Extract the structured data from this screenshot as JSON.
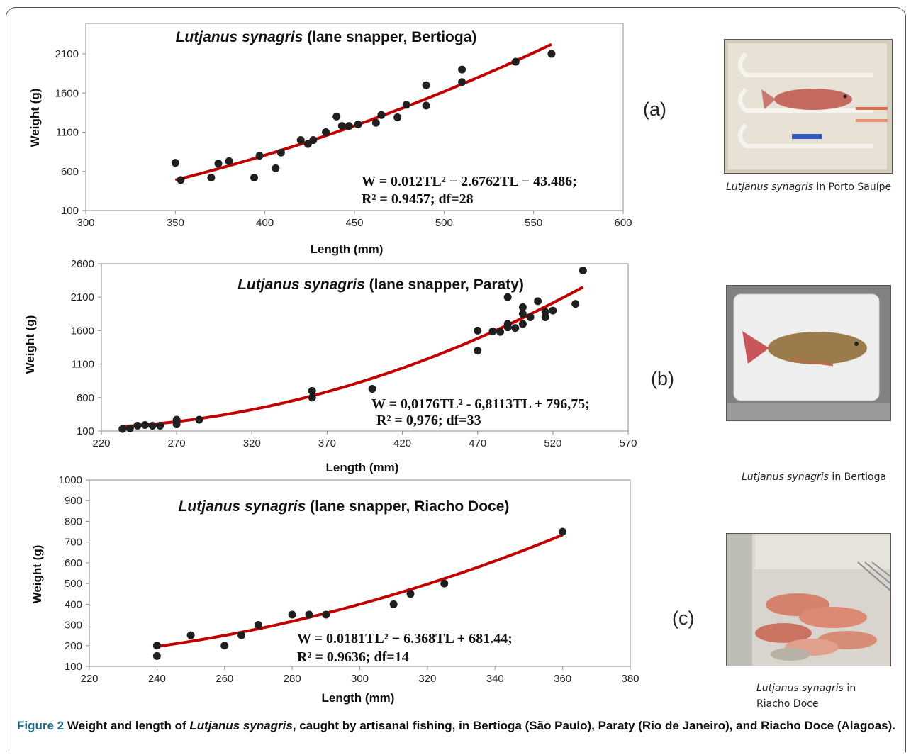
{
  "chart_data": [
    {
      "type": "scatter",
      "panel": "(a)",
      "title_species": "Lutjanus synagris",
      "title_rest": " (lane snapper, Bertioga)",
      "xlabel": "Length (mm)",
      "ylabel": "Weight (g)",
      "xlim": [
        300,
        600
      ],
      "ylim": [
        100,
        2100
      ],
      "xticks": [
        300,
        350,
        400,
        450,
        500,
        550,
        600
      ],
      "yticks": [
        100,
        600,
        1100,
        1600,
        2100
      ],
      "grid": false,
      "trendline": {
        "type": "polynomial",
        "a": 0.012,
        "b": -2.6762,
        "c": -43.486,
        "x_range": [
          350,
          560
        ],
        "color": "#c00000"
      },
      "equation_line1": "W = 0.012TL² − 2.6762TL − 43.486;",
      "equation_line2": "R² = 0.9457; df=28",
      "points": [
        [
          350,
          710
        ],
        [
          353,
          490
        ],
        [
          370,
          520
        ],
        [
          374,
          700
        ],
        [
          380,
          730
        ],
        [
          394,
          520
        ],
        [
          397,
          800
        ],
        [
          406,
          640
        ],
        [
          409,
          840
        ],
        [
          420,
          1000
        ],
        [
          424,
          950
        ],
        [
          427,
          1000
        ],
        [
          434,
          1100
        ],
        [
          440,
          1300
        ],
        [
          443,
          1180
        ],
        [
          447,
          1180
        ],
        [
          452,
          1200
        ],
        [
          462,
          1220
        ],
        [
          465,
          1320
        ],
        [
          474,
          1290
        ],
        [
          479,
          1450
        ],
        [
          490,
          1440
        ],
        [
          490,
          1700
        ],
        [
          510,
          1740
        ],
        [
          510,
          1900
        ],
        [
          540,
          2000
        ],
        [
          560,
          2100
        ]
      ]
    },
    {
      "type": "scatter",
      "panel": "(b)",
      "title_species": "Lutjanus synagris",
      "title_rest": " (lane snapper, Paraty)",
      "xlabel": "Length (mm)",
      "ylabel": "Weight (g)",
      "xlim": [
        220,
        570
      ],
      "ylim": [
        100,
        2600
      ],
      "xticks": [
        220,
        270,
        320,
        370,
        420,
        470,
        520,
        570
      ],
      "yticks": [
        100,
        600,
        1100,
        1600,
        2100,
        2600
      ],
      "grid": false,
      "trendline": {
        "type": "polynomial",
        "a": 0.0176,
        "b": -6.8113,
        "c": 796.75,
        "x_range": [
          233,
          540
        ],
        "color": "#c00000"
      },
      "equation_line1": "W = 0,0176TL² - 6,8113TL + 796,75;",
      "equation_line2": "R² = 0,976; df=33",
      "points": [
        [
          234,
          130
        ],
        [
          239,
          140
        ],
        [
          244,
          180
        ],
        [
          249,
          190
        ],
        [
          254,
          180
        ],
        [
          259,
          180
        ],
        [
          270,
          200
        ],
        [
          270,
          270
        ],
        [
          285,
          270
        ],
        [
          360,
          600
        ],
        [
          360,
          700
        ],
        [
          400,
          730
        ],
        [
          470,
          1300
        ],
        [
          470,
          1600
        ],
        [
          480,
          1590
        ],
        [
          485,
          1580
        ],
        [
          490,
          1650
        ],
        [
          490,
          1700
        ],
        [
          490,
          2100
        ],
        [
          495,
          1640
        ],
        [
          500,
          1700
        ],
        [
          500,
          1850
        ],
        [
          500,
          1950
        ],
        [
          505,
          1800
        ],
        [
          510,
          2040
        ],
        [
          515,
          1800
        ],
        [
          515,
          1880
        ],
        [
          520,
          1900
        ],
        [
          535,
          2000
        ],
        [
          540,
          2500
        ]
      ]
    },
    {
      "type": "scatter",
      "panel": "(c)",
      "title_species": "Lutjanus synagris",
      "title_rest": " (lane snapper, Riacho Doce)",
      "xlabel": "Length (mm)",
      "ylabel": "Weight (g)",
      "xlim": [
        220,
        380
      ],
      "ylim": [
        100,
        1000
      ],
      "xticks": [
        220,
        240,
        260,
        280,
        300,
        320,
        340,
        360,
        380
      ],
      "yticks": [
        100,
        200,
        300,
        400,
        500,
        600,
        700,
        800,
        900,
        1000
      ],
      "grid": false,
      "trendline": {
        "type": "polynomial",
        "a": 0.0181,
        "b": -6.368,
        "c": 681.44,
        "x_range": [
          240,
          360
        ],
        "color": "#c00000"
      },
      "equation_line1": "W = 0.0181TL² − 6.368TL + 681.44;",
      "equation_line2": "R² = 0.9636; df=14",
      "points": [
        [
          240,
          150
        ],
        [
          240,
          200
        ],
        [
          250,
          250
        ],
        [
          260,
          200
        ],
        [
          265,
          250
        ],
        [
          270,
          300
        ],
        [
          280,
          350
        ],
        [
          285,
          350
        ],
        [
          290,
          350
        ],
        [
          310,
          400
        ],
        [
          315,
          450
        ],
        [
          325,
          500
        ],
        [
          360,
          750
        ]
      ]
    }
  ],
  "photos": [
    {
      "caption_species": "Lutjanus synagris",
      "caption_place": " in Porto Sauípe"
    },
    {
      "caption_species": "Lutjanus synagris",
      "caption_place": " in  Bertioga"
    },
    {
      "caption_species": "Lutjanus synagris",
      "caption_place": " in",
      "caption_place2": "Riacho Doce"
    }
  ],
  "figure_caption": {
    "label": "Figure 2",
    "text_before": " Weight and length of ",
    "species": "Lutjanus synagris",
    "text_after": ", caught by artisanal fishing, in Bertioga (São Paulo), Paraty (Rio de Janeiro), and Riacho Doce (Alagoas)."
  },
  "colors": {
    "points": "#1f1f1f",
    "trendline": "#c00000",
    "axis": "#999999"
  }
}
